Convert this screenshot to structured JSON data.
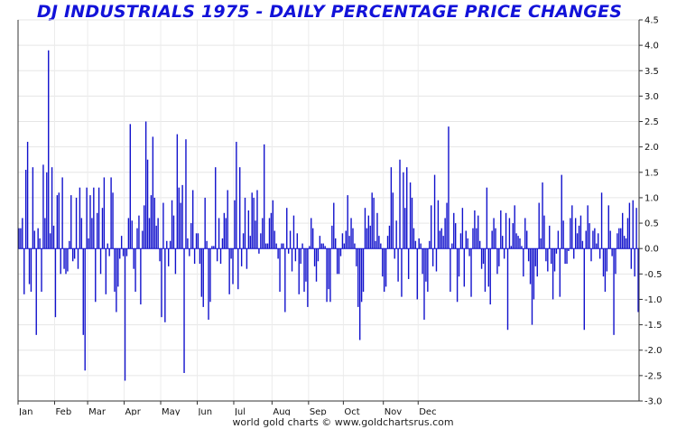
{
  "chart_data": {
    "type": "bar",
    "title": "DJ INDUSTRIALS 1975 - DAILY PERCENTAGE PRICE CHANGES",
    "footer": "world gold charts © www.goldchartsrus.com",
    "xlabel": "",
    "ylabel": "",
    "ylim": [
      -3.0,
      4.5
    ],
    "y_ticks": [
      "4.5",
      "4.0",
      "3.5",
      "3.0",
      "2.5",
      "2.0",
      "1.5",
      "1.0",
      "0.5",
      "0.0",
      "-0.5",
      "-1.0",
      "-1.5",
      "-2.0",
      "-2.5",
      "-3.0"
    ],
    "y_axis_side": "right",
    "grid": true,
    "month_labels": [
      "Jan",
      "Feb",
      "Mar",
      "Apr",
      "May",
      "Jun",
      "Jul",
      "Aug",
      "Sep",
      "Oct",
      "Nov",
      "Dec"
    ],
    "month_start_index": [
      0,
      21,
      40,
      61,
      82,
      103,
      124,
      146,
      167,
      187,
      210,
      230
    ],
    "bar_color": "#1111cc",
    "values": [
      0.4,
      0.4,
      0.6,
      -0.9,
      1.55,
      2.1,
      -0.7,
      -0.85,
      1.6,
      0.35,
      -1.7,
      0.4,
      0.2,
      -0.85,
      1.65,
      0.6,
      1.5,
      3.9,
      0.3,
      1.6,
      0.45,
      -1.35,
      1.05,
      1.1,
      -0.5,
      1.4,
      -0.4,
      -0.5,
      -0.45,
      0.15,
      1.05,
      -0.25,
      -0.2,
      1.0,
      -0.4,
      1.2,
      0.6,
      -1.7,
      -2.4,
      1.2,
      0.2,
      1.05,
      0.6,
      1.2,
      -1.05,
      0.7,
      1.2,
      -0.5,
      0.8,
      1.4,
      -0.9,
      0.1,
      -0.15,
      1.4,
      1.1,
      -0.85,
      -1.25,
      -0.75,
      -0.2,
      0.25,
      -0.15,
      -2.6,
      -0.15,
      0.6,
      2.45,
      0.55,
      -0.4,
      -0.85,
      0.4,
      0.65,
      -1.1,
      0.35,
      0.85,
      2.5,
      1.75,
      0.6,
      1.05,
      2.2,
      1.0,
      0.45,
      0.6,
      -0.25,
      -1.35,
      0.9,
      -1.45,
      0.15,
      -0.35,
      0.15,
      0.95,
      0.65,
      -0.5,
      2.25,
      1.2,
      0.9,
      1.25,
      -2.45,
      2.15,
      0.2,
      -0.15,
      0.5,
      1.15,
      -0.3,
      0.3,
      0.3,
      -0.3,
      -0.95,
      -1.15,
      1.0,
      0.15,
      -1.4,
      -1.05,
      0.05,
      0.05,
      1.6,
      -0.25,
      0.6,
      -0.3,
      0.2,
      0.7,
      0.6,
      1.15,
      -0.9,
      -0.2,
      -0.7,
      0.95,
      2.1,
      -0.8,
      1.6,
      -0.35,
      0.3,
      1.0,
      -0.4,
      0.75,
      0.25,
      1.1,
      1.0,
      0.55,
      1.15,
      -0.1,
      0.3,
      0.6,
      2.05,
      0.1,
      0.1,
      0.6,
      0.7,
      0.95,
      0.35,
      0.1,
      -0.2,
      -0.85,
      0.1,
      0.1,
      -1.25,
      0.8,
      -0.1,
      0.35,
      -0.45,
      0.65,
      -0.25,
      0.3,
      -0.9,
      -0.3,
      0.1,
      -0.85,
      -0.65,
      -1.15,
      0.05,
      0.6,
      0.4,
      -0.35,
      -0.65,
      -0.25,
      0.25,
      0.1,
      0.1,
      0.05,
      -1.05,
      -0.8,
      -1.05,
      0.45,
      0.9,
      0.2,
      -0.5,
      -0.5,
      -0.15,
      0.3,
      0.1,
      0.35,
      1.05,
      0.25,
      0.6,
      0.4,
      0.1,
      -0.35,
      -1.15,
      -1.8,
      -1.05,
      -0.85,
      0.8,
      0.4,
      0.65,
      0.45,
      1.1,
      1.0,
      0.15,
      0.7,
      0.25,
      0.1,
      -0.55,
      -0.85,
      -0.75,
      0.25,
      0.45,
      1.6,
      1.1,
      -0.2,
      0.55,
      -0.65,
      1.75,
      -0.95,
      1.5,
      0.8,
      1.6,
      -0.6,
      1.3,
      1.0,
      0.4,
      0.15,
      -1.0,
      0.2,
      0.1,
      -0.5,
      -1.4,
      -0.65,
      -0.85,
      0.15,
      0.85,
      -0.35,
      1.45,
      -0.45,
      0.95,
      0.35,
      0.4,
      0.25,
      0.6,
      0.9,
      2.4,
      -0.85,
      0.1,
      0.7,
      0.5,
      -1.05,
      -0.55,
      0.3,
      0.8,
      -0.75,
      0.35,
      0.2,
      -0.15,
      -0.95,
      0.4,
      0.75,
      0.4,
      0.65,
      0.15,
      -0.4,
      -0.3,
      -0.85,
      1.2,
      -0.75,
      -1.1,
      0.35,
      0.6,
      0.4,
      -0.5,
      -0.35,
      0.75,
      0.25,
      -0.2,
      0.7,
      -1.6,
      0.6,
      0.05,
      0.5,
      0.85,
      0.3,
      0.25,
      0.2,
      0.05,
      -0.55,
      0.6,
      0.35,
      -0.25,
      -0.7,
      -1.5,
      -1.0,
      -0.35,
      -0.55,
      0.9,
      0.2,
      1.3,
      0.65,
      -0.25,
      -0.45,
      0.45,
      -0.3,
      -1.0,
      -0.45,
      -0.1,
      0.35,
      -0.95,
      1.45,
      0.55,
      -0.3,
      -0.3,
      -0.05,
      0.6,
      0.85,
      -0.2,
      0.6,
      0.3,
      0.45,
      0.65,
      0.15,
      -1.6,
      0.35,
      0.85,
      0.5,
      -0.25,
      0.35,
      0.4,
      0.1,
      0.3,
      -0.2,
      1.1,
      -0.55,
      -0.85,
      -0.45,
      0.85,
      0.35,
      -0.15,
      -1.7,
      -0.5,
      0.3,
      0.4,
      0.4,
      0.7,
      0.25,
      0.2,
      0.6,
      0.9,
      -0.4,
      0.95,
      -0.55,
      0.8,
      -1.25
    ]
  }
}
